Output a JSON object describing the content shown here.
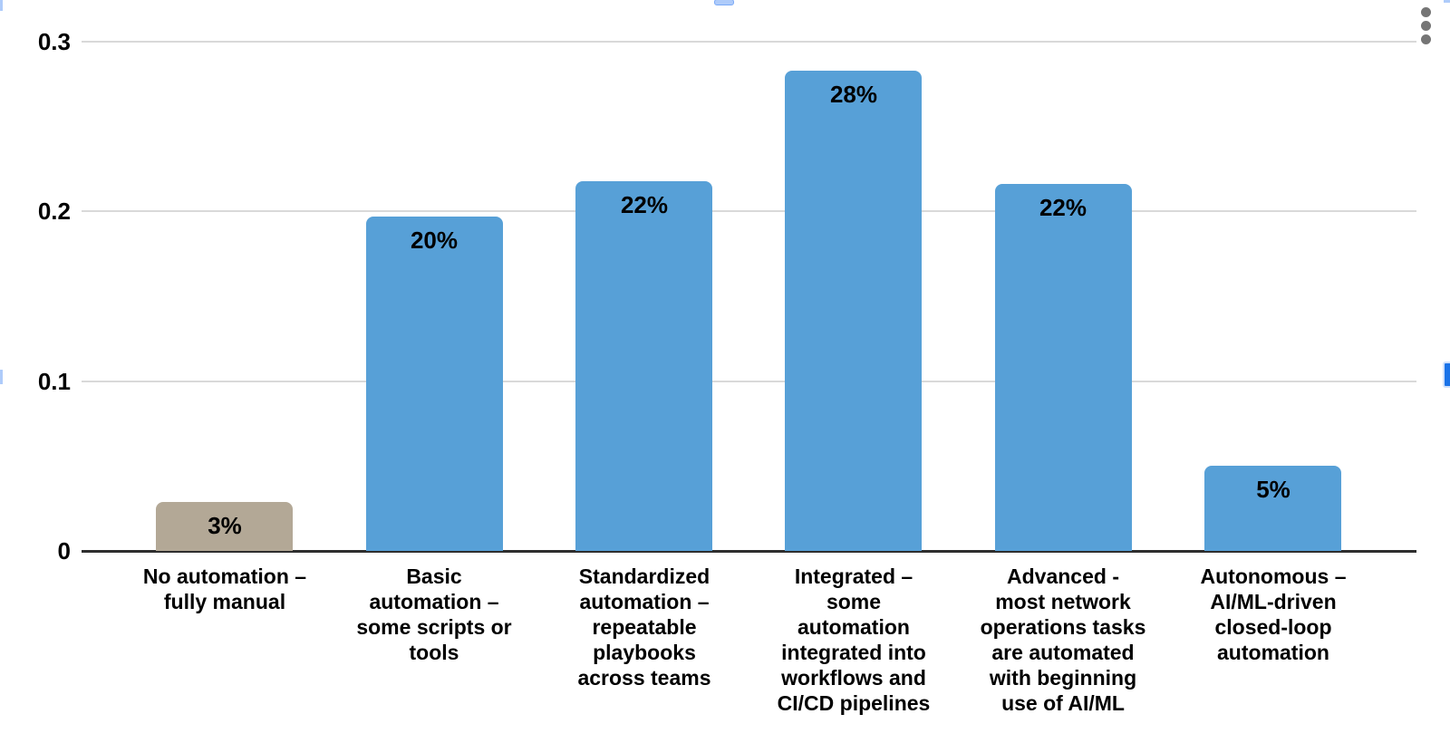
{
  "chart_data": {
    "type": "bar",
    "title": "",
    "xlabel": "",
    "ylabel": "",
    "categories": [
      "No automation –\nfully manual",
      "Basic\nautomation –\nsome scripts or\ntools",
      "Standardized\nautomation –\nrepeatable\nplaybooks\nacross teams",
      "Integrated –\nsome\nautomation\nintegrated into\nworkflows and\nCI/CD pipelines",
      "Advanced -\nmost network\noperations tasks\nare automated\nwith beginning\nuse of AI/ML",
      "Autonomous –\nAI/ML-driven\nclosed-loop\nautomation"
    ],
    "values": [
      0.029,
      0.197,
      0.218,
      0.283,
      0.216,
      0.05
    ],
    "bar_labels": [
      "3%",
      "20%",
      "22%",
      "28%",
      "22%",
      "5%"
    ],
    "bar_colors": [
      "#b3a896",
      "#57a0d7",
      "#57a0d7",
      "#57a0d7",
      "#57a0d7",
      "#57a0d7"
    ],
    "ylim": [
      0,
      0.31
    ],
    "y_ticks": [
      {
        "value": 0,
        "label": "0"
      },
      {
        "value": 0.1,
        "label": "0.1"
      },
      {
        "value": 0.2,
        "label": "0.2"
      },
      {
        "value": 0.3,
        "label": "0.3"
      }
    ],
    "grid": "horizontal",
    "legend": "none",
    "value_label_position": "inside-top"
  },
  "colors": {
    "gridline": "#d9d9d9",
    "axis_line": "#2e2e2e",
    "menu_dots": "#757575",
    "selection_handle_light": "#aecbfa",
    "selection_handle_dark": "#1a73e8"
  },
  "icons": {
    "overflow_menu": "three-dot-vertical-menu-icon"
  }
}
